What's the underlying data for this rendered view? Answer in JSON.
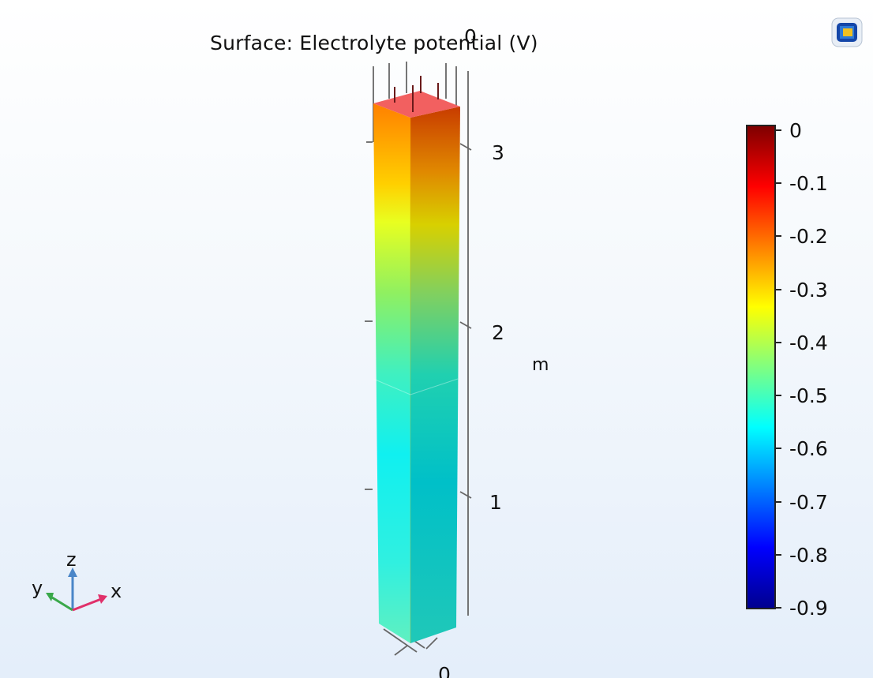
{
  "plot": {
    "title": "Surface: Electrolyte potential (V)",
    "unit": "m",
    "axis_ticks": {
      "z_right": [
        "3",
        "2",
        "1"
      ],
      "top": "0",
      "bottom": "0"
    }
  },
  "colorbar": {
    "min": -0.9,
    "max": 0,
    "labels": [
      "0",
      "-0.1",
      "-0.2",
      "-0.3",
      "-0.4",
      "-0.5",
      "-0.6",
      "-0.7",
      "-0.8",
      "-0.9"
    ],
    "colormap": "rainbow",
    "stops": [
      "#7f0000",
      "#ff0000",
      "#ff8000",
      "#ffff00",
      "#80ff80",
      "#00ffff",
      "#0080ff",
      "#0000ff",
      "#00008f"
    ]
  },
  "axis_indicator": {
    "labels": {
      "z": "z",
      "y": "y",
      "x": "x"
    },
    "colors": {
      "z": "#4a86c8",
      "y": "#3aa84a",
      "x": "#e0306a"
    }
  },
  "colors": {
    "background_top": "#ffffff",
    "background_bottom": "#e4eefa"
  },
  "icons": {
    "logo": "comsol-logo-icon"
  }
}
